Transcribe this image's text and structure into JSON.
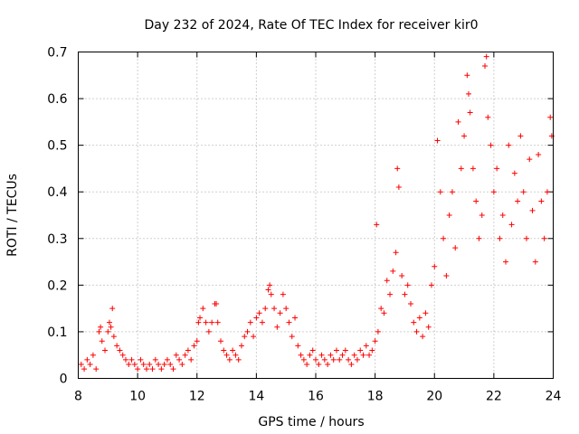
{
  "chart_data": {
    "type": "scatter",
    "title": "Day 232 of 2024, Rate Of TEC Index for receiver kir0",
    "xlabel": "GPS time / hours",
    "ylabel": "ROTI / TECUs",
    "xlim": [
      8,
      24
    ],
    "ylim": [
      0,
      0.7
    ],
    "xticks": [
      "8",
      "10",
      "12",
      "14",
      "16",
      "18",
      "20",
      "22",
      "24"
    ],
    "yticks": [
      "0",
      "0.1",
      "0.2",
      "0.3",
      "0.4",
      "0.5",
      "0.6",
      "0.7"
    ],
    "grid": true,
    "marker": "+",
    "color": "#ff0000",
    "series": [
      {
        "name": "ROTI",
        "points": [
          [
            8.1,
            0.03
          ],
          [
            8.2,
            0.02
          ],
          [
            8.3,
            0.04
          ],
          [
            8.4,
            0.03
          ],
          [
            8.5,
            0.05
          ],
          [
            8.6,
            0.02
          ],
          [
            8.7,
            0.1
          ],
          [
            8.75,
            0.11
          ],
          [
            8.8,
            0.08
          ],
          [
            8.9,
            0.06
          ],
          [
            9.0,
            0.1
          ],
          [
            9.05,
            0.12
          ],
          [
            9.1,
            0.11
          ],
          [
            9.15,
            0.15
          ],
          [
            9.2,
            0.09
          ],
          [
            9.3,
            0.07
          ],
          [
            9.4,
            0.06
          ],
          [
            9.5,
            0.05
          ],
          [
            9.6,
            0.04
          ],
          [
            9.7,
            0.03
          ],
          [
            9.8,
            0.04
          ],
          [
            9.9,
            0.03
          ],
          [
            10.0,
            0.02
          ],
          [
            10.1,
            0.04
          ],
          [
            10.2,
            0.03
          ],
          [
            10.3,
            0.02
          ],
          [
            10.4,
            0.03
          ],
          [
            10.5,
            0.02
          ],
          [
            10.6,
            0.04
          ],
          [
            10.7,
            0.03
          ],
          [
            10.8,
            0.02
          ],
          [
            10.9,
            0.03
          ],
          [
            11.0,
            0.04
          ],
          [
            11.1,
            0.03
          ],
          [
            11.2,
            0.02
          ],
          [
            11.3,
            0.05
          ],
          [
            11.4,
            0.04
          ],
          [
            11.5,
            0.03
          ],
          [
            11.6,
            0.05
          ],
          [
            11.7,
            0.06
          ],
          [
            11.8,
            0.04
          ],
          [
            11.9,
            0.07
          ],
          [
            12.0,
            0.08
          ],
          [
            12.05,
            0.12
          ],
          [
            12.1,
            0.13
          ],
          [
            12.2,
            0.15
          ],
          [
            12.3,
            0.12
          ],
          [
            12.4,
            0.1
          ],
          [
            12.5,
            0.12
          ],
          [
            12.6,
            0.16
          ],
          [
            12.65,
            0.16
          ],
          [
            12.7,
            0.12
          ],
          [
            12.8,
            0.08
          ],
          [
            12.9,
            0.06
          ],
          [
            13.0,
            0.05
          ],
          [
            13.1,
            0.04
          ],
          [
            13.2,
            0.06
          ],
          [
            13.3,
            0.05
          ],
          [
            13.4,
            0.04
          ],
          [
            13.5,
            0.07
          ],
          [
            13.6,
            0.09
          ],
          [
            13.7,
            0.1
          ],
          [
            13.8,
            0.12
          ],
          [
            13.9,
            0.09
          ],
          [
            14.0,
            0.13
          ],
          [
            14.1,
            0.14
          ],
          [
            14.2,
            0.12
          ],
          [
            14.3,
            0.15
          ],
          [
            14.4,
            0.19
          ],
          [
            14.45,
            0.2
          ],
          [
            14.5,
            0.18
          ],
          [
            14.6,
            0.15
          ],
          [
            14.7,
            0.11
          ],
          [
            14.8,
            0.14
          ],
          [
            14.9,
            0.18
          ],
          [
            15.0,
            0.15
          ],
          [
            15.1,
            0.12
          ],
          [
            15.2,
            0.09
          ],
          [
            15.3,
            0.13
          ],
          [
            15.4,
            0.07
          ],
          [
            15.5,
            0.05
          ],
          [
            15.6,
            0.04
          ],
          [
            15.7,
            0.03
          ],
          [
            15.8,
            0.05
          ],
          [
            15.9,
            0.06
          ],
          [
            16.0,
            0.04
          ],
          [
            16.1,
            0.03
          ],
          [
            16.2,
            0.05
          ],
          [
            16.3,
            0.04
          ],
          [
            16.4,
            0.03
          ],
          [
            16.5,
            0.05
          ],
          [
            16.6,
            0.04
          ],
          [
            16.7,
            0.06
          ],
          [
            16.8,
            0.04
          ],
          [
            16.9,
            0.05
          ],
          [
            17.0,
            0.06
          ],
          [
            17.1,
            0.04
          ],
          [
            17.2,
            0.03
          ],
          [
            17.3,
            0.05
          ],
          [
            17.4,
            0.04
          ],
          [
            17.5,
            0.06
          ],
          [
            17.6,
            0.05
          ],
          [
            17.7,
            0.07
          ],
          [
            17.8,
            0.05
          ],
          [
            17.9,
            0.06
          ],
          [
            18.0,
            0.08
          ],
          [
            18.05,
            0.33
          ],
          [
            18.1,
            0.1
          ],
          [
            18.2,
            0.15
          ],
          [
            18.3,
            0.14
          ],
          [
            18.4,
            0.21
          ],
          [
            18.5,
            0.18
          ],
          [
            18.6,
            0.23
          ],
          [
            18.7,
            0.27
          ],
          [
            18.75,
            0.45
          ],
          [
            18.8,
            0.41
          ],
          [
            18.9,
            0.22
          ],
          [
            19.0,
            0.18
          ],
          [
            19.1,
            0.2
          ],
          [
            19.2,
            0.16
          ],
          [
            19.3,
            0.12
          ],
          [
            19.4,
            0.1
          ],
          [
            19.5,
            0.13
          ],
          [
            19.6,
            0.09
          ],
          [
            19.7,
            0.14
          ],
          [
            19.8,
            0.11
          ],
          [
            19.9,
            0.2
          ],
          [
            20.0,
            0.24
          ],
          [
            20.1,
            0.51
          ],
          [
            20.2,
            0.4
          ],
          [
            20.3,
            0.3
          ],
          [
            20.4,
            0.22
          ],
          [
            20.5,
            0.35
          ],
          [
            20.6,
            0.4
          ],
          [
            20.7,
            0.28
          ],
          [
            20.8,
            0.55
          ],
          [
            20.9,
            0.45
          ],
          [
            21.0,
            0.52
          ],
          [
            21.1,
            0.65
          ],
          [
            21.15,
            0.61
          ],
          [
            21.2,
            0.57
          ],
          [
            21.3,
            0.45
          ],
          [
            21.4,
            0.38
          ],
          [
            21.5,
            0.3
          ],
          [
            21.6,
            0.35
          ],
          [
            21.7,
            0.67
          ],
          [
            21.75,
            0.69
          ],
          [
            21.8,
            0.56
          ],
          [
            21.9,
            0.5
          ],
          [
            22.0,
            0.4
          ],
          [
            22.1,
            0.45
          ],
          [
            22.2,
            0.3
          ],
          [
            22.3,
            0.35
          ],
          [
            22.4,
            0.25
          ],
          [
            22.5,
            0.5
          ],
          [
            22.6,
            0.33
          ],
          [
            22.7,
            0.44
          ],
          [
            22.8,
            0.38
          ],
          [
            22.9,
            0.52
          ],
          [
            23.0,
            0.4
          ],
          [
            23.1,
            0.3
          ],
          [
            23.2,
            0.47
          ],
          [
            23.3,
            0.36
          ],
          [
            23.4,
            0.25
          ],
          [
            23.5,
            0.48
          ],
          [
            23.6,
            0.38
          ],
          [
            23.7,
            0.3
          ],
          [
            23.8,
            0.4
          ],
          [
            23.9,
            0.56
          ],
          [
            23.95,
            0.52
          ]
        ]
      }
    ]
  }
}
